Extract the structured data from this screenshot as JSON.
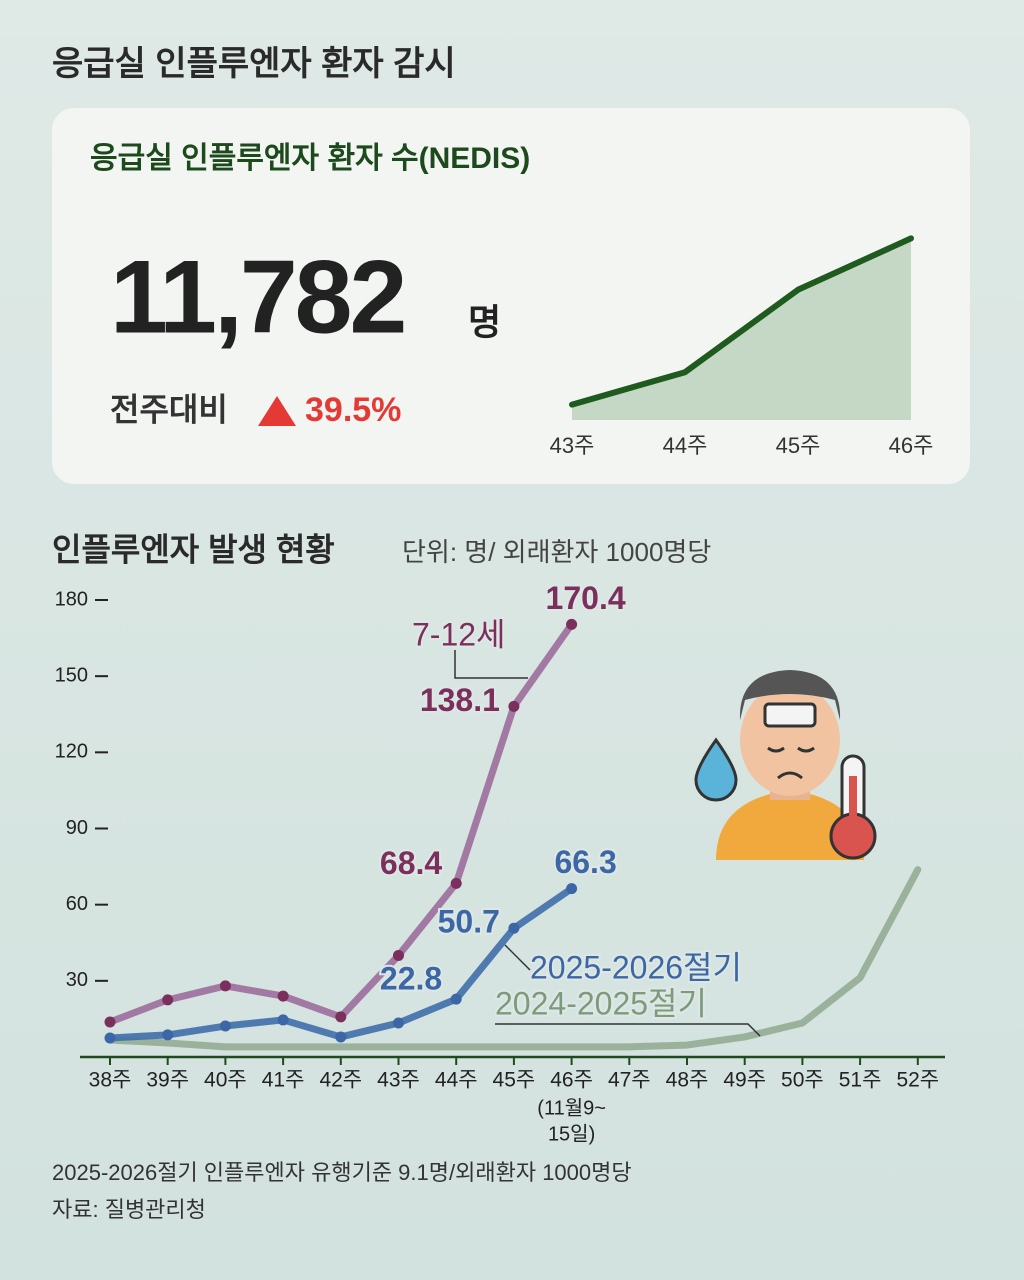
{
  "header": {
    "title": "응급실 인플루엔자 환자 감시"
  },
  "stat": {
    "title": "응급실 인플루엔자 환자 수(NEDIS)",
    "value": "11,782",
    "unit": "명",
    "change_label": "전주대비",
    "change": "39.5%"
  },
  "chart_data": [
    {
      "type": "area",
      "categories": [
        "43주",
        "44주",
        "45주",
        "46주"
      ],
      "values": [
        1000,
        3100,
        8446,
        11782
      ],
      "color": "#1f5a1f",
      "fill": "#b9d1b9",
      "ylim": [
        0,
        12000
      ]
    },
    {
      "type": "line",
      "title": "인플루엔자 발생 현황",
      "subtitle": "단위: 명/ 외래환자 1000명당",
      "categories": [
        "38주",
        "39주",
        "40주",
        "41주",
        "42주",
        "43주",
        "44주",
        "45주",
        "46주",
        "47주",
        "48주",
        "49주",
        "50주",
        "51주",
        "52주"
      ],
      "category_note": [
        "(11월9~",
        "15일)"
      ],
      "ylim": [
        0,
        180
      ],
      "yticks": [
        30,
        60,
        90,
        120,
        150,
        180
      ],
      "series": [
        {
          "name": "2024-2025절기",
          "color": "#94ab94",
          "label_color": "#7d9a7d",
          "markers": false,
          "values": [
            6.7,
            5.5,
            4,
            4,
            4,
            4,
            4,
            4,
            4,
            4,
            4.7,
            7.9,
            13.4,
            31.2,
            73.8
          ]
        },
        {
          "name": "7-12세",
          "color": "#9b6d9c",
          "label_color": "#7a2f5c",
          "markers": true,
          "values": [
            13.8,
            22.5,
            28,
            24,
            15.8,
            40,
            68.4,
            138.1,
            170.4,
            null,
            null,
            null,
            null,
            null,
            null
          ],
          "value_labels": [
            null,
            null,
            null,
            null,
            null,
            null,
            "68.4",
            "138.1",
            "170.4",
            null,
            null,
            null,
            null,
            null,
            null
          ]
        },
        {
          "name": "2025-2026절기",
          "color": "#3f6eab",
          "label_color": "#3c66a5",
          "markers": true,
          "values": [
            7.5,
            8.7,
            12.2,
            14.6,
            7.9,
            13.4,
            22.8,
            50.7,
            66.3,
            null,
            null,
            null,
            null,
            null,
            null
          ],
          "value_labels": [
            null,
            null,
            null,
            null,
            null,
            null,
            "22.8",
            "50.7",
            "66.3",
            null,
            null,
            null,
            null,
            null,
            null
          ]
        }
      ]
    }
  ],
  "footer": {
    "note": "2025-2026절기 인플루엔자 유행기준 9.1명/외래환자 1000명당",
    "source": "자료: 질병관리청"
  }
}
